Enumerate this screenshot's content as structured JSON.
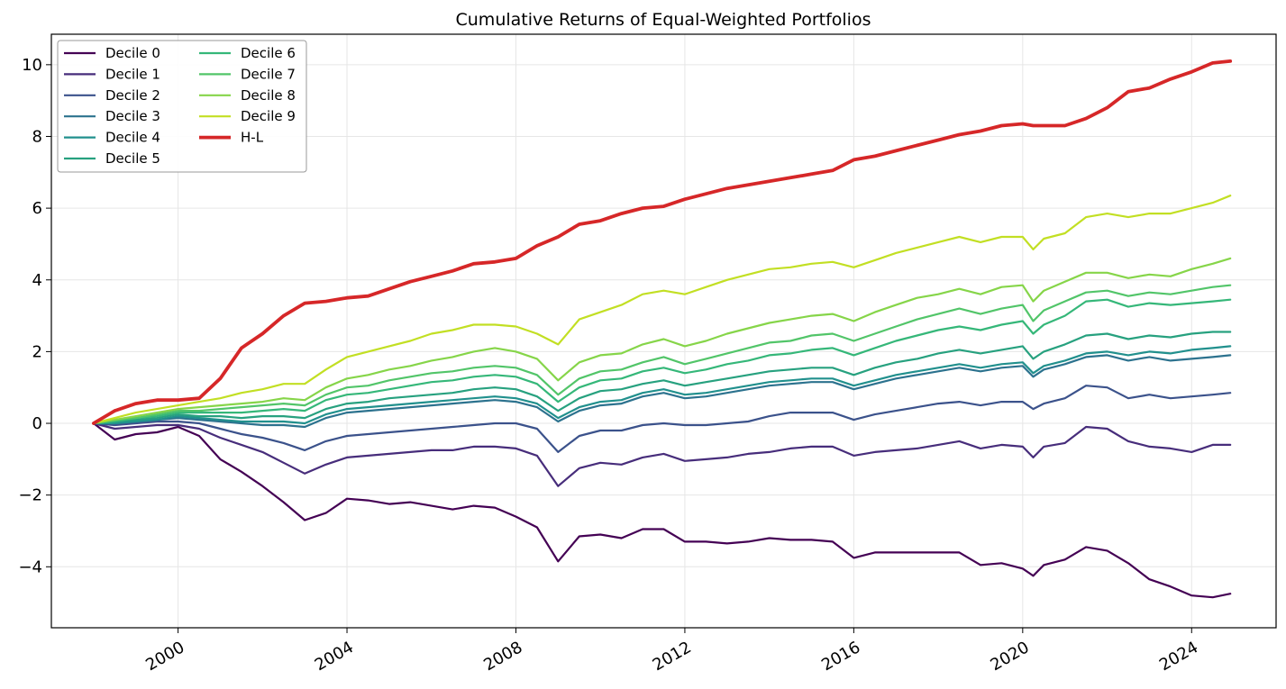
{
  "chart_data": {
    "type": "line",
    "title": "Cumulative Returns of Equal-Weighted Portfolios",
    "xlabel": "",
    "ylabel": "",
    "x_type": "date",
    "xlim": [
      "1997-01-01",
      "2026-01-01"
    ],
    "ylim": [
      -5.7,
      10.85
    ],
    "x_ticks": [
      "2000",
      "2004",
      "2008",
      "2012",
      "2016",
      "2020",
      "2024"
    ],
    "y_ticks": [
      -4,
      -2,
      0,
      2,
      4,
      6,
      8,
      10
    ],
    "y_tick_labels": [
      "−4",
      "−2",
      "0",
      "2",
      "4",
      "6",
      "8",
      "10"
    ],
    "grid": true,
    "legend_position": "top-left",
    "legend_columns": 2,
    "x": [
      "1998-01",
      "1998-07",
      "1999-01",
      "1999-07",
      "2000-01",
      "2000-07",
      "2001-01",
      "2001-07",
      "2002-01",
      "2002-07",
      "2003-01",
      "2003-07",
      "2004-01",
      "2004-07",
      "2005-01",
      "2005-07",
      "2006-01",
      "2006-07",
      "2007-01",
      "2007-07",
      "2008-01",
      "2008-07",
      "2009-01",
      "2009-07",
      "2010-01",
      "2010-07",
      "2011-01",
      "2011-07",
      "2012-01",
      "2012-07",
      "2013-01",
      "2013-07",
      "2014-01",
      "2014-07",
      "2015-01",
      "2015-07",
      "2016-01",
      "2016-07",
      "2017-01",
      "2017-07",
      "2018-01",
      "2018-07",
      "2019-01",
      "2019-07",
      "2020-01",
      "2020-04",
      "2020-07",
      "2021-01",
      "2021-07",
      "2022-01",
      "2022-07",
      "2023-01",
      "2023-07",
      "2024-01",
      "2024-07",
      "2024-12"
    ],
    "series": [
      {
        "name": "Decile 0",
        "color": "#440154",
        "width": 2.2,
        "values": [
          0.0,
          -0.45,
          -0.3,
          -0.25,
          -0.1,
          -0.35,
          -1.0,
          -1.35,
          -1.75,
          -2.2,
          -2.7,
          -2.5,
          -2.1,
          -2.15,
          -2.25,
          -2.2,
          -2.3,
          -2.4,
          -2.3,
          -2.35,
          -2.6,
          -2.9,
          -3.85,
          -3.15,
          -3.1,
          -3.2,
          -2.95,
          -2.95,
          -3.3,
          -3.3,
          -3.35,
          -3.3,
          -3.2,
          -3.25,
          -3.25,
          -3.3,
          -3.75,
          -3.6,
          -3.6,
          -3.6,
          -3.6,
          -3.6,
          -3.95,
          -3.9,
          -4.05,
          -4.25,
          -3.95,
          -3.8,
          -3.45,
          -3.55,
          -3.9,
          -4.35,
          -4.55,
          -4.8,
          -4.85,
          -4.75
        ]
      },
      {
        "name": "Decile 1",
        "color": "#472d7b",
        "width": 2.2,
        "values": [
          0.0,
          -0.15,
          -0.1,
          -0.05,
          -0.05,
          -0.15,
          -0.4,
          -0.6,
          -0.8,
          -1.1,
          -1.4,
          -1.15,
          -0.95,
          -0.9,
          -0.85,
          -0.8,
          -0.75,
          -0.75,
          -0.65,
          -0.65,
          -0.7,
          -0.9,
          -1.75,
          -1.25,
          -1.1,
          -1.15,
          -0.95,
          -0.85,
          -1.05,
          -1.0,
          -0.95,
          -0.85,
          -0.8,
          -0.7,
          -0.65,
          -0.65,
          -0.9,
          -0.8,
          -0.75,
          -0.7,
          -0.6,
          -0.5,
          -0.7,
          -0.6,
          -0.65,
          -0.95,
          -0.65,
          -0.55,
          -0.1,
          -0.15,
          -0.5,
          -0.65,
          -0.7,
          -0.8,
          -0.6,
          -0.6
        ]
      },
      {
        "name": "Decile 2",
        "color": "#3b528b",
        "width": 2.2,
        "values": [
          0.0,
          -0.05,
          0.0,
          0.05,
          0.05,
          0.0,
          -0.15,
          -0.3,
          -0.4,
          -0.55,
          -0.75,
          -0.5,
          -0.35,
          -0.3,
          -0.25,
          -0.2,
          -0.15,
          -0.1,
          -0.05,
          0.0,
          0.0,
          -0.15,
          -0.8,
          -0.35,
          -0.2,
          -0.2,
          -0.05,
          0.0,
          -0.05,
          -0.05,
          0.0,
          0.05,
          0.2,
          0.3,
          0.3,
          0.3,
          0.1,
          0.25,
          0.35,
          0.45,
          0.55,
          0.6,
          0.5,
          0.6,
          0.6,
          0.4,
          0.55,
          0.7,
          1.05,
          1.0,
          0.7,
          0.8,
          0.7,
          0.75,
          0.8,
          0.85
        ]
      },
      {
        "name": "Decile 3",
        "color": "#2c728e",
        "width": 2.2,
        "values": [
          0.0,
          0.0,
          0.05,
          0.1,
          0.15,
          0.1,
          0.05,
          0.0,
          -0.05,
          -0.05,
          -0.1,
          0.15,
          0.3,
          0.35,
          0.4,
          0.45,
          0.5,
          0.55,
          0.6,
          0.65,
          0.6,
          0.45,
          0.05,
          0.35,
          0.5,
          0.55,
          0.75,
          0.85,
          0.7,
          0.75,
          0.85,
          0.95,
          1.05,
          1.1,
          1.15,
          1.15,
          0.95,
          1.1,
          1.25,
          1.35,
          1.45,
          1.55,
          1.45,
          1.55,
          1.6,
          1.3,
          1.5,
          1.65,
          1.85,
          1.9,
          1.75,
          1.85,
          1.75,
          1.8,
          1.85,
          1.9
        ]
      },
      {
        "name": "Decile 4",
        "color": "#21908d",
        "width": 2.2,
        "values": [
          0.0,
          0.0,
          0.05,
          0.1,
          0.2,
          0.15,
          0.1,
          0.05,
          0.05,
          0.05,
          0.0,
          0.25,
          0.4,
          0.45,
          0.5,
          0.55,
          0.6,
          0.65,
          0.7,
          0.75,
          0.7,
          0.55,
          0.15,
          0.45,
          0.6,
          0.65,
          0.85,
          0.95,
          0.8,
          0.85,
          0.95,
          1.05,
          1.15,
          1.2,
          1.25,
          1.25,
          1.05,
          1.2,
          1.35,
          1.45,
          1.55,
          1.65,
          1.55,
          1.65,
          1.7,
          1.4,
          1.6,
          1.75,
          1.95,
          2.0,
          1.9,
          2.0,
          1.95,
          2.05,
          2.1,
          2.15
        ]
      },
      {
        "name": "Decile 5",
        "color": "#27a17f",
        "width": 2.2,
        "values": [
          0.0,
          0.05,
          0.1,
          0.15,
          0.25,
          0.2,
          0.2,
          0.15,
          0.2,
          0.2,
          0.15,
          0.4,
          0.55,
          0.6,
          0.7,
          0.75,
          0.8,
          0.85,
          0.95,
          1.0,
          0.95,
          0.75,
          0.35,
          0.7,
          0.9,
          0.95,
          1.1,
          1.2,
          1.05,
          1.15,
          1.25,
          1.35,
          1.45,
          1.5,
          1.55,
          1.55,
          1.35,
          1.55,
          1.7,
          1.8,
          1.95,
          2.05,
          1.95,
          2.05,
          2.15,
          1.8,
          2.0,
          2.2,
          2.45,
          2.5,
          2.35,
          2.45,
          2.4,
          2.5,
          2.55,
          2.55
        ]
      },
      {
        "name": "Decile 6",
        "color": "#35b779",
        "width": 2.2,
        "values": [
          0.0,
          0.05,
          0.15,
          0.2,
          0.3,
          0.3,
          0.3,
          0.3,
          0.35,
          0.4,
          0.35,
          0.65,
          0.8,
          0.85,
          0.95,
          1.05,
          1.15,
          1.2,
          1.3,
          1.35,
          1.3,
          1.1,
          0.6,
          1.0,
          1.2,
          1.25,
          1.45,
          1.55,
          1.4,
          1.5,
          1.65,
          1.75,
          1.9,
          1.95,
          2.05,
          2.1,
          1.9,
          2.1,
          2.3,
          2.45,
          2.6,
          2.7,
          2.6,
          2.75,
          2.85,
          2.5,
          2.75,
          3.0,
          3.4,
          3.45,
          3.25,
          3.35,
          3.3,
          3.35,
          3.4,
          3.45
        ]
      },
      {
        "name": "Decile 7",
        "color": "#52c569",
        "width": 2.2,
        "values": [
          0.0,
          0.1,
          0.15,
          0.25,
          0.35,
          0.35,
          0.4,
          0.45,
          0.5,
          0.55,
          0.5,
          0.8,
          1.0,
          1.05,
          1.2,
          1.3,
          1.4,
          1.45,
          1.55,
          1.6,
          1.55,
          1.35,
          0.8,
          1.25,
          1.45,
          1.5,
          1.7,
          1.85,
          1.65,
          1.8,
          1.95,
          2.1,
          2.25,
          2.3,
          2.45,
          2.5,
          2.3,
          2.5,
          2.7,
          2.9,
          3.05,
          3.2,
          3.05,
          3.2,
          3.3,
          2.85,
          3.15,
          3.4,
          3.65,
          3.7,
          3.55,
          3.65,
          3.6,
          3.7,
          3.8,
          3.85
        ]
      },
      {
        "name": "Decile 8",
        "color": "#86d549",
        "width": 2.2,
        "values": [
          0.0,
          0.1,
          0.2,
          0.3,
          0.4,
          0.45,
          0.5,
          0.55,
          0.6,
          0.7,
          0.65,
          1.0,
          1.25,
          1.35,
          1.5,
          1.6,
          1.75,
          1.85,
          2.0,
          2.1,
          2.0,
          1.8,
          1.2,
          1.7,
          1.9,
          1.95,
          2.2,
          2.35,
          2.15,
          2.3,
          2.5,
          2.65,
          2.8,
          2.9,
          3.0,
          3.05,
          2.85,
          3.1,
          3.3,
          3.5,
          3.6,
          3.75,
          3.6,
          3.8,
          3.85,
          3.4,
          3.7,
          3.95,
          4.2,
          4.2,
          4.05,
          4.15,
          4.1,
          4.3,
          4.45,
          4.6
        ]
      },
      {
        "name": "Decile 9",
        "color": "#c2df23",
        "width": 2.2,
        "values": [
          0.0,
          0.15,
          0.3,
          0.4,
          0.5,
          0.6,
          0.7,
          0.85,
          0.95,
          1.1,
          1.1,
          1.5,
          1.85,
          2.0,
          2.15,
          2.3,
          2.5,
          2.6,
          2.75,
          2.75,
          2.7,
          2.5,
          2.2,
          2.9,
          3.1,
          3.3,
          3.6,
          3.7,
          3.6,
          3.8,
          4.0,
          4.15,
          4.3,
          4.35,
          4.45,
          4.5,
          4.35,
          4.55,
          4.75,
          4.9,
          5.05,
          5.2,
          5.05,
          5.2,
          5.2,
          4.85,
          5.15,
          5.3,
          5.75,
          5.85,
          5.75,
          5.85,
          5.85,
          6.0,
          6.15,
          6.35
        ]
      },
      {
        "name": "H-L",
        "color": "#d62728",
        "width": 3.8,
        "values": [
          0.0,
          0.35,
          0.55,
          0.65,
          0.65,
          0.7,
          1.25,
          2.1,
          2.5,
          3.0,
          3.35,
          3.4,
          3.5,
          3.55,
          3.75,
          3.95,
          4.1,
          4.25,
          4.45,
          4.5,
          4.6,
          4.95,
          5.2,
          5.55,
          5.65,
          5.85,
          6.0,
          6.05,
          6.25,
          6.4,
          6.55,
          6.65,
          6.75,
          6.85,
          6.95,
          7.05,
          7.35,
          7.45,
          7.6,
          7.75,
          7.9,
          8.05,
          8.15,
          8.3,
          8.35,
          8.3,
          8.3,
          8.3,
          8.5,
          8.8,
          9.25,
          9.35,
          9.6,
          9.8,
          10.05,
          10.1
        ]
      }
    ]
  }
}
